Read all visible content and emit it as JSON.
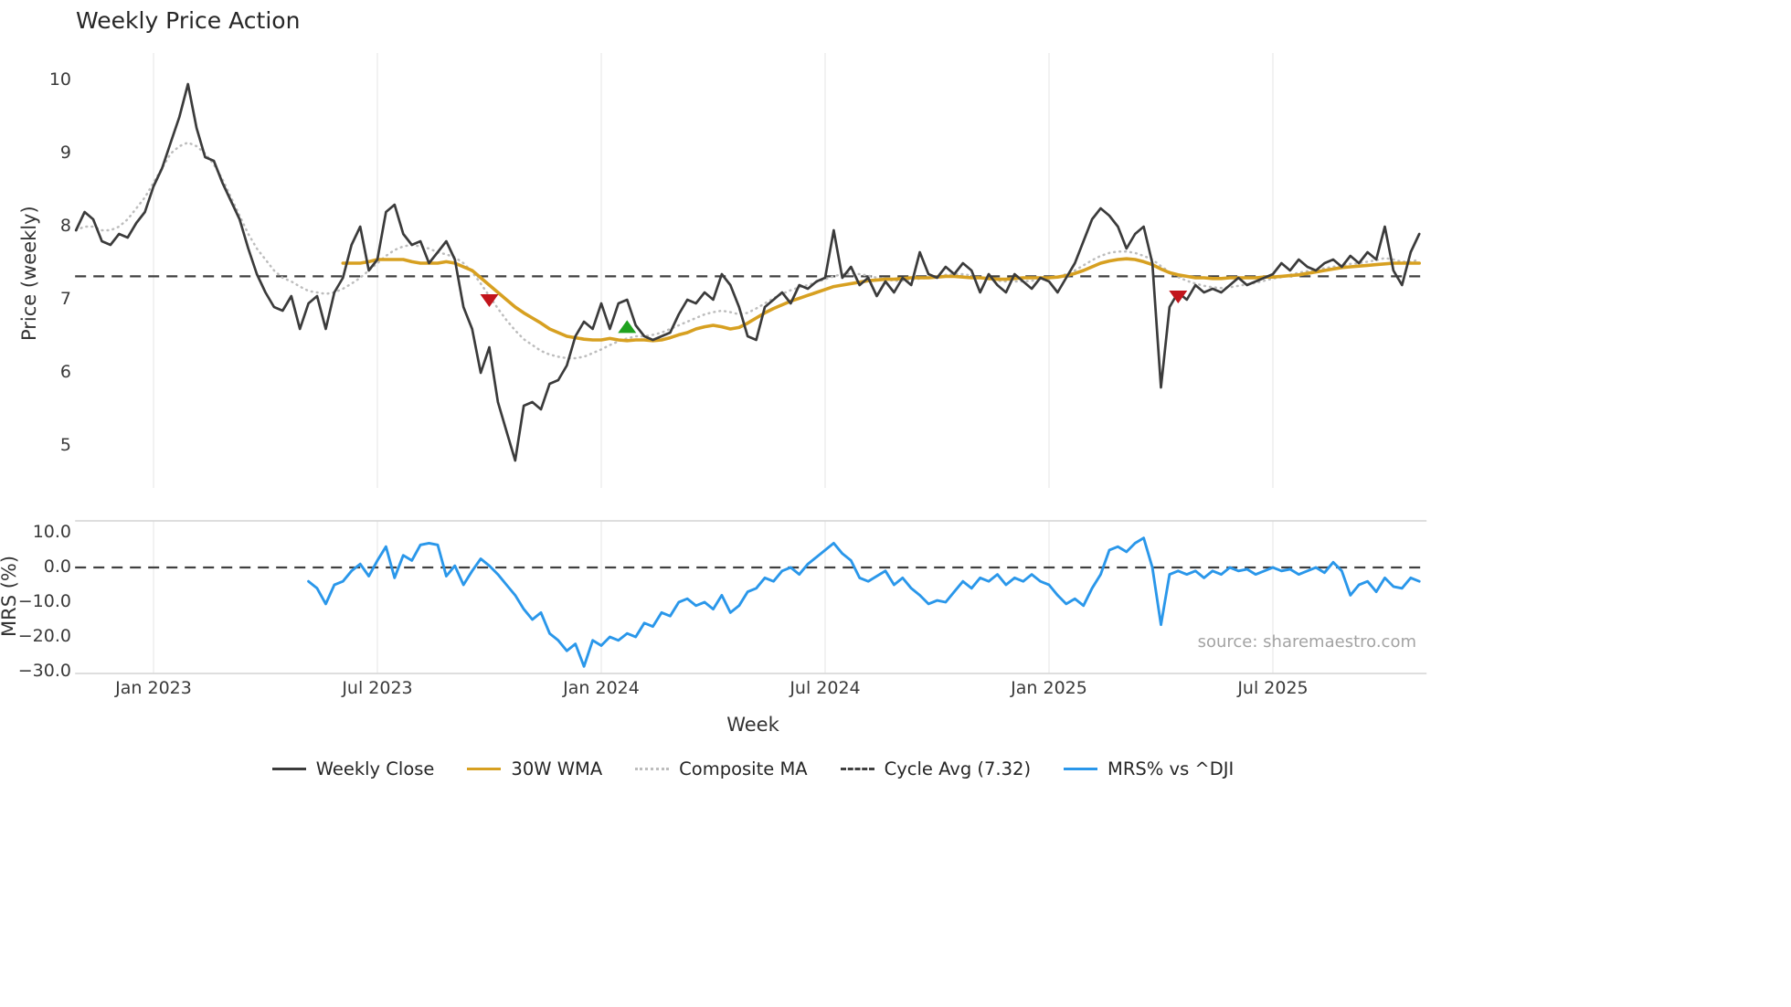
{
  "title": "Weekly Price Action",
  "source": "source: sharemaestro.com",
  "axes": {
    "price_label": "Price (weekly)",
    "price_ticks": [
      "10",
      "9",
      "8",
      "7",
      "6",
      "5"
    ],
    "mrs_label": "MRS (%)",
    "mrs_ticks": [
      "10.0",
      "0.0",
      "−10.0",
      "−20.0",
      "−30.0"
    ],
    "x_label": "Week",
    "x_ticks": [
      "Jan 2023",
      "Jul 2023",
      "Jan 2024",
      "Jul 2024",
      "Jan 2025",
      "Jul 2025"
    ]
  },
  "legend": {
    "items": [
      {
        "label": "Weekly Close",
        "color": "#3b3b3b",
        "style": "solid"
      },
      {
        "label": "30W WMA",
        "color": "#d7a021",
        "style": "solid"
      },
      {
        "label": "Composite MA",
        "color": "#bdbdbd",
        "style": "dotted"
      },
      {
        "label": "Cycle Avg (7.32)",
        "color": "#404040",
        "style": "dashed"
      },
      {
        "label": "MRS% vs ^DJI",
        "color": "#2a97ea",
        "style": "solid"
      }
    ]
  },
  "chart_data": {
    "type": "line",
    "title": "Weekly Price Action",
    "xlabel": "Week",
    "x_tick_labels": [
      "Jan 2023",
      "Jul 2023",
      "Jan 2024",
      "Jul 2024",
      "Jan 2025",
      "Jul 2025"
    ],
    "x_tick_weeks": [
      9,
      35,
      61,
      87,
      113,
      139
    ],
    "x_unit": "week_index_from_Nov_2022",
    "weeks_total": 157,
    "grid": "vertical-only",
    "legend_position": "bottom-center",
    "panels": [
      {
        "name": "price",
        "ylabel": "Price (weekly)",
        "ylim": [
          4.6,
          10.3
        ],
        "yticks": [
          10,
          9,
          8,
          7,
          6,
          5
        ],
        "cycle_avg": 7.32,
        "series": [
          {
            "name": "Weekly Close",
            "color": "#3b3b3b",
            "start_week": 0,
            "values": [
              7.95,
              8.2,
              8.1,
              7.8,
              7.75,
              7.9,
              7.85,
              8.05,
              8.2,
              8.55,
              8.8,
              9.15,
              9.5,
              9.95,
              9.35,
              8.95,
              8.9,
              8.6,
              8.35,
              8.1,
              7.7,
              7.35,
              7.1,
              6.9,
              6.85,
              7.05,
              6.6,
              6.95,
              7.05,
              6.6,
              7.1,
              7.3,
              7.75,
              8.0,
              7.4,
              7.55,
              8.2,
              8.3,
              7.9,
              7.75,
              7.8,
              7.5,
              7.65,
              7.8,
              7.55,
              6.9,
              6.6,
              6.0,
              6.35,
              5.6,
              5.2,
              4.8,
              5.55,
              5.6,
              5.5,
              5.85,
              5.9,
              6.1,
              6.5,
              6.7,
              6.6,
              6.95,
              6.6,
              6.95,
              7.0,
              6.65,
              6.5,
              6.45,
              6.5,
              6.55,
              6.8,
              7.0,
              6.95,
              7.1,
              7.0,
              7.35,
              7.2,
              6.9,
              6.5,
              6.45,
              6.9,
              7.0,
              7.1,
              6.95,
              7.2,
              7.15,
              7.25,
              7.3,
              7.95,
              7.3,
              7.45,
              7.2,
              7.3,
              7.05,
              7.25,
              7.1,
              7.3,
              7.2,
              7.65,
              7.35,
              7.3,
              7.45,
              7.35,
              7.5,
              7.4,
              7.1,
              7.35,
              7.2,
              7.1,
              7.35,
              7.25,
              7.15,
              7.3,
              7.25,
              7.1,
              7.3,
              7.5,
              7.8,
              8.1,
              8.25,
              8.15,
              8.0,
              7.7,
              7.9,
              8.0,
              7.5,
              5.8,
              6.9,
              7.1,
              7.0,
              7.2,
              7.1,
              7.15,
              7.1,
              7.2,
              7.3,
              7.2,
              7.25,
              7.3,
              7.35,
              7.5,
              7.4,
              7.55,
              7.45,
              7.4,
              7.5,
              7.55,
              7.45,
              7.6,
              7.5,
              7.65,
              7.55,
              8.0,
              7.4,
              7.2,
              7.65,
              7.9
            ]
          },
          {
            "name": "30W WMA",
            "color": "#d7a021",
            "start_week": 31,
            "values": [
              7.5,
              7.5,
              7.5,
              7.52,
              7.55,
              7.55,
              7.55,
              7.55,
              7.52,
              7.5,
              7.5,
              7.5,
              7.52,
              7.5,
              7.45,
              7.4,
              7.3,
              7.2,
              7.1,
              7.0,
              6.9,
              6.82,
              6.75,
              6.68,
              6.6,
              6.55,
              6.5,
              6.48,
              6.46,
              6.45,
              6.45,
              6.47,
              6.45,
              6.44,
              6.45,
              6.45,
              6.44,
              6.45,
              6.48,
              6.52,
              6.55,
              6.6,
              6.63,
              6.65,
              6.63,
              6.6,
              6.62,
              6.68,
              6.75,
              6.82,
              6.88,
              6.93,
              6.98,
              7.02,
              7.06,
              7.1,
              7.14,
              7.18,
              7.2,
              7.22,
              7.24,
              7.26,
              7.27,
              7.28,
              7.28,
              7.29,
              7.3,
              7.3,
              7.3,
              7.31,
              7.32,
              7.32,
              7.31,
              7.3,
              7.3,
              7.29,
              7.28,
              7.28,
              7.29,
              7.3,
              7.3,
              7.3,
              7.3,
              7.31,
              7.33,
              7.36,
              7.4,
              7.45,
              7.5,
              7.53,
              7.55,
              7.56,
              7.55,
              7.52,
              7.48,
              7.42,
              7.37,
              7.34,
              7.32,
              7.3,
              7.3,
              7.29,
              7.29,
              7.3,
              7.3,
              7.3,
              7.3,
              7.31,
              7.31,
              7.32,
              7.33,
              7.34,
              7.36,
              7.38,
              7.4,
              7.42,
              7.44,
              7.45,
              7.46,
              7.47,
              7.48,
              7.49,
              7.5,
              7.5,
              7.5,
              7.5
            ]
          },
          {
            "name": "Composite MA",
            "color": "#bdbdbd",
            "start_week": 0,
            "values": [
              7.95,
              8.0,
              8.0,
              7.95,
              7.95,
              8.0,
              8.1,
              8.25,
              8.4,
              8.6,
              8.8,
              9.0,
              9.1,
              9.15,
              9.1,
              9.0,
              8.85,
              8.65,
              8.4,
              8.15,
              7.9,
              7.7,
              7.55,
              7.4,
              7.3,
              7.25,
              7.18,
              7.12,
              7.1,
              7.08,
              7.1,
              7.15,
              7.22,
              7.3,
              7.4,
              7.5,
              7.6,
              7.68,
              7.73,
              7.75,
              7.73,
              7.7,
              7.65,
              7.62,
              7.58,
              7.5,
              7.38,
              7.22,
              7.05,
              6.88,
              6.72,
              6.58,
              6.46,
              6.38,
              6.3,
              6.25,
              6.22,
              6.2,
              6.2,
              6.22,
              6.27,
              6.32,
              6.38,
              6.43,
              6.47,
              6.5,
              6.5,
              6.52,
              6.55,
              6.6,
              6.65,
              6.7,
              6.75,
              6.8,
              6.83,
              6.85,
              6.83,
              6.8,
              6.82,
              6.88,
              6.95,
              7.02,
              7.08,
              7.13,
              7.17,
              7.2,
              7.24,
              7.28,
              7.32,
              7.35,
              7.36,
              7.35,
              7.33,
              7.3,
              7.28,
              7.26,
              7.26,
              7.27,
              7.29,
              7.3,
              7.32,
              7.34,
              7.35,
              7.35,
              7.33,
              7.3,
              7.28,
              7.26,
              7.25,
              7.25,
              7.25,
              7.26,
              7.27,
              7.29,
              7.31,
              7.35,
              7.4,
              7.47,
              7.54,
              7.6,
              7.64,
              7.66,
              7.66,
              7.64,
              7.6,
              7.55,
              7.46,
              7.38,
              7.31,
              7.26,
              7.22,
              7.19,
              7.17,
              7.16,
              7.17,
              7.19,
              7.21,
              7.23,
              7.26,
              7.29,
              7.31,
              7.34,
              7.37,
              7.39,
              7.41,
              7.43,
              7.45,
              7.47,
              7.49,
              7.5,
              7.52,
              7.54,
              7.57,
              7.55,
              7.52,
              7.52,
              7.55
            ]
          }
        ],
        "markers": {
          "sell_color": "#c2151c",
          "buy_color": "#1fa21f",
          "sell": [
            {
              "week": 48,
              "value": 7.0
            },
            {
              "week": 128,
              "value": 7.05
            }
          ],
          "buy": [
            {
              "week": 64,
              "value": 6.62
            }
          ]
        }
      },
      {
        "name": "mrs",
        "ylabel": "MRS (%)",
        "ylim": [
          -31,
          12
        ],
        "yticks": [
          10,
          0,
          -10,
          -20,
          -30
        ],
        "zero_line": 0,
        "series": [
          {
            "name": "MRS% vs ^DJI",
            "color": "#2a97ea",
            "start_week": 27,
            "values": [
              -4,
              -6,
              -10.5,
              -5,
              -4,
              -1,
              1,
              -2.5,
              2,
              6,
              -3,
              3.5,
              2,
              6.5,
              7,
              6.5,
              -2.5,
              0.5,
              -5,
              -1,
              2.5,
              0.5,
              -2,
              -5,
              -8,
              -12,
              -15,
              -13,
              -19,
              -21,
              -24,
              -22,
              -28.5,
              -21,
              -22.5,
              -20,
              -21,
              -19,
              -20,
              -16,
              -17,
              -13,
              -14,
              -10,
              -9,
              -11,
              -10,
              -12,
              -8,
              -13,
              -11,
              -7,
              -6,
              -3,
              -4,
              -1,
              0,
              -2,
              1,
              3,
              5,
              7,
              4,
              2,
              -3,
              -4,
              -2.5,
              -1,
              -5,
              -3,
              -6,
              -8,
              -10.5,
              -9.5,
              -10,
              -7,
              -4,
              -6,
              -3,
              -4,
              -2,
              -5,
              -3,
              -4,
              -2,
              -4,
              -5,
              -8,
              -10.5,
              -9,
              -11,
              -6,
              -2,
              5,
              6,
              4.5,
              7,
              8.5,
              0,
              -16.5,
              -2,
              -1,
              -2,
              -1,
              -3,
              -1,
              -2,
              0,
              -1,
              -0.5,
              -2,
              -1,
              0,
              -1,
              -0.5,
              -2,
              -1,
              0,
              -1.5,
              1.5,
              -1,
              -8,
              -5,
              -4,
              -7,
              -3,
              -5.5,
              -6,
              -3,
              -4
            ]
          }
        ]
      }
    ]
  }
}
